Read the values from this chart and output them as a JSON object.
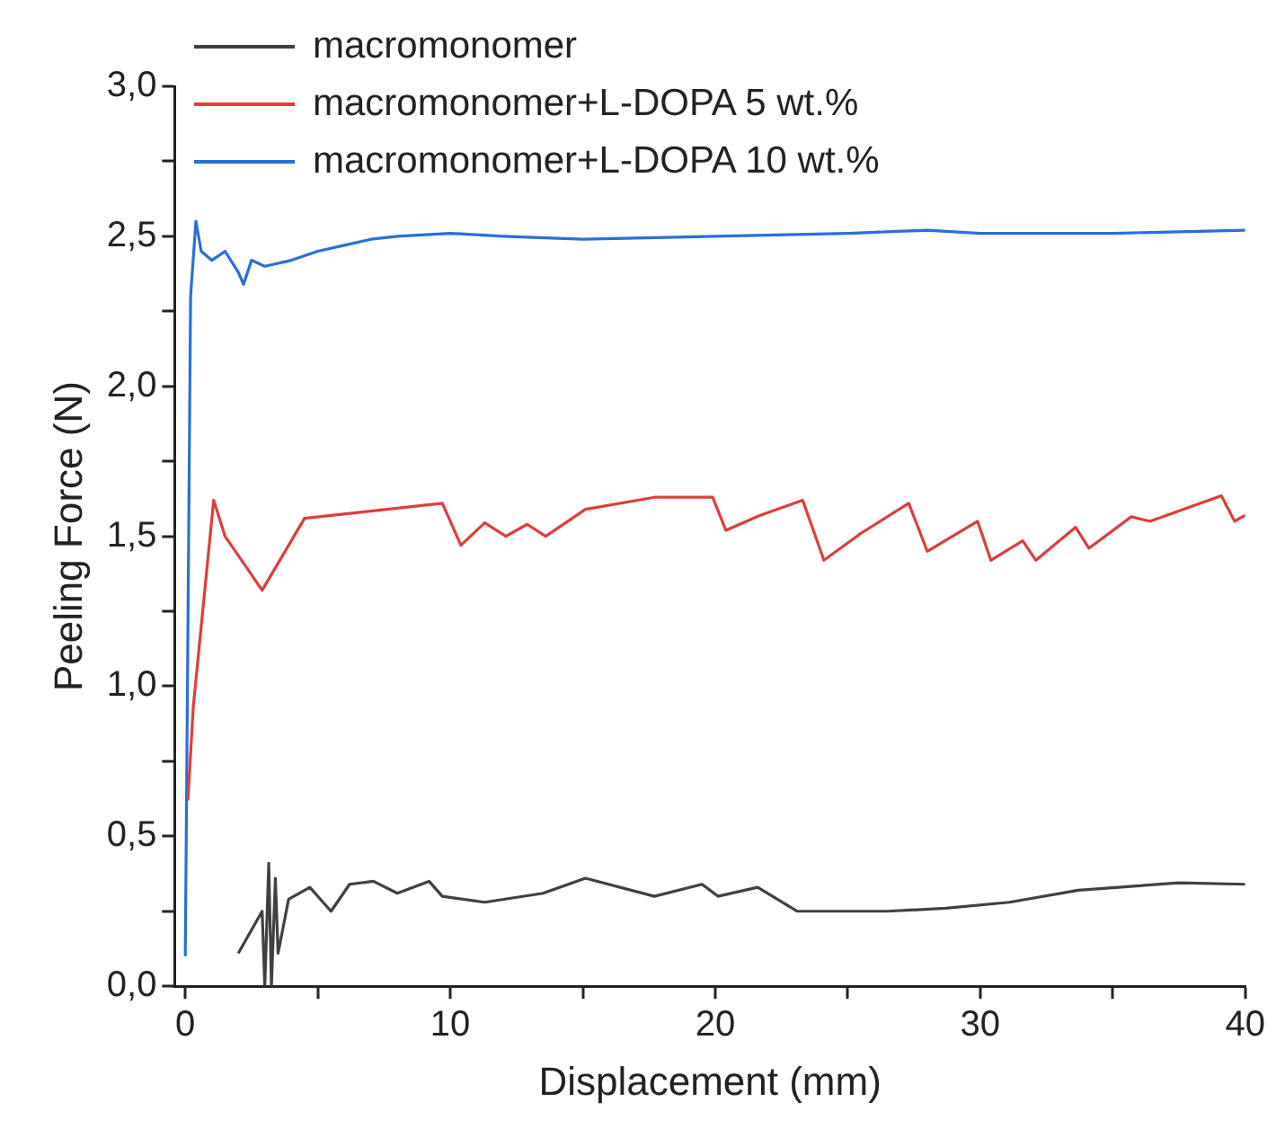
{
  "chart_data": {
    "type": "line",
    "xlabel": "Displacement (mm)",
    "ylabel": "Peeling Force (N)",
    "xlim": [
      -0.4,
      40
    ],
    "ylim": [
      0,
      3
    ],
    "xticks": [
      0,
      {
        "value": 5,
        "label": null
      },
      10,
      {
        "value": 15,
        "label": null
      },
      20,
      {
        "value": 25,
        "label": null
      },
      30,
      {
        "value": 35,
        "label": null
      },
      40
    ],
    "yticks": [
      {
        "value": 0,
        "label": "0,0"
      },
      {
        "value": 0.25,
        "label": null
      },
      {
        "value": 0.5,
        "label": "0,5"
      },
      {
        "value": 0.75,
        "label": null
      },
      {
        "value": 1,
        "label": "1,0"
      },
      {
        "value": 1.25,
        "label": null
      },
      {
        "value": 1.5,
        "label": "1,5"
      },
      {
        "value": 1.75,
        "label": null
      },
      {
        "value": 2,
        "label": "2,0"
      },
      {
        "value": 2.25,
        "label": null
      },
      {
        "value": 2.5,
        "label": "2,5"
      },
      {
        "value": 2.75,
        "label": null
      },
      {
        "value": 3,
        "label": "3,0"
      }
    ],
    "grid": false,
    "legend": "top left",
    "marker": "none",
    "line_style": "solid",
    "series": [
      {
        "name": "macromonomer",
        "color": "#404040",
        "x": [
          2.0,
          2.9,
          3.0,
          3.15,
          3.25,
          3.4,
          3.5,
          3.9,
          4.7,
          5.5,
          6.2,
          7.1,
          8.0,
          9.2,
          9.7,
          11.3,
          13.5,
          15.1,
          17.7,
          19.5,
          20.1,
          21.6,
          23.1,
          26.5,
          28.7,
          31.1,
          33.7,
          37.5,
          40
        ],
        "values": [
          0.11,
          0.25,
          0.0,
          0.41,
          0.0,
          0.36,
          0.11,
          0.29,
          0.33,
          0.25,
          0.34,
          0.35,
          0.31,
          0.35,
          0.3,
          0.28,
          0.31,
          0.36,
          0.3,
          0.34,
          0.3,
          0.33,
          0.25,
          0.25,
          0.26,
          0.28,
          0.32,
          0.345,
          0.34
        ]
      },
      {
        "name": "macromonomer+L-DOPA 5 wt.%",
        "color": "#e03c3c",
        "x": [
          0.1,
          0.3,
          1.07,
          1.5,
          2.9,
          4.5,
          9.7,
          10.4,
          11.3,
          12.1,
          12.9,
          13.6,
          15.1,
          17.7,
          19.9,
          20.4,
          21.7,
          23.3,
          24.1,
          25.5,
          27.3,
          28.0,
          29.9,
          30.4,
          31.6,
          32.1,
          33.6,
          34.1,
          35.7,
          36.4,
          39.1,
          39.6,
          40
        ],
        "values": [
          0.62,
          0.93,
          1.62,
          1.5,
          1.32,
          1.56,
          1.61,
          1.47,
          1.545,
          1.5,
          1.54,
          1.5,
          1.59,
          1.63,
          1.63,
          1.52,
          1.57,
          1.62,
          1.42,
          1.51,
          1.61,
          1.45,
          1.55,
          1.42,
          1.485,
          1.42,
          1.53,
          1.46,
          1.565,
          1.55,
          1.635,
          1.55,
          1.57
        ]
      },
      {
        "name": "macromonomer+L-DOPA 10 wt.%",
        "color": "#2a6fd6",
        "x": [
          0,
          0.2,
          0.4,
          0.6,
          1,
          1.5,
          2,
          2.2,
          2.5,
          3,
          4,
          5,
          6,
          7,
          8,
          10,
          12,
          15,
          20,
          25,
          28,
          30,
          35,
          40
        ],
        "values": [
          0.1,
          2.3,
          2.55,
          2.45,
          2.42,
          2.45,
          2.38,
          2.34,
          2.42,
          2.4,
          2.42,
          2.45,
          2.47,
          2.49,
          2.5,
          2.51,
          2.5,
          2.49,
          2.5,
          2.51,
          2.52,
          2.51,
          2.51,
          2.52
        ]
      }
    ]
  }
}
